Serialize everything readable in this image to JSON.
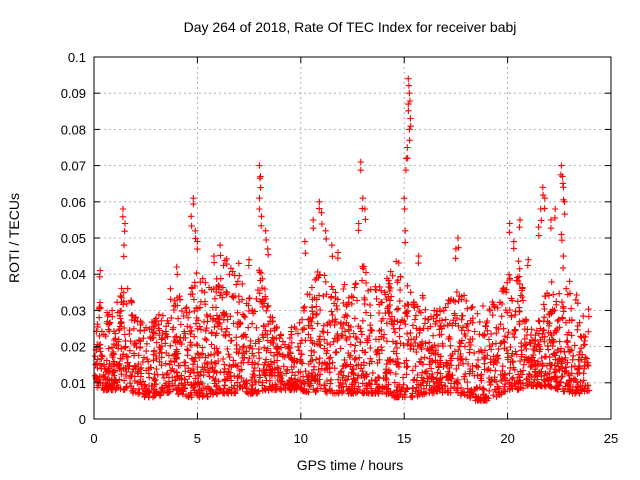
{
  "chart_data": {
    "type": "scatter",
    "title": "Day 264 of 2018, Rate Of TEC Index for receiver babj",
    "xlabel": "GPS time / hours",
    "ylabel": "ROTI / TECUs",
    "xlim": [
      0,
      25
    ],
    "ylim": [
      0,
      0.1
    ],
    "xticks": [
      "0",
      "5",
      "10",
      "15",
      "20",
      "25"
    ],
    "yticks": [
      "0",
      "0.01",
      "0.02",
      "0.03",
      "0.04",
      "0.05",
      "0.06",
      "0.07",
      "0.08",
      "0.09",
      "0.1"
    ],
    "grid": true,
    "marker": "+",
    "color": "#ff0000",
    "envelope": {
      "x": [
        0,
        0.3,
        0.5,
        1,
        1.5,
        2,
        2.5,
        3,
        3.5,
        4,
        4.5,
        5,
        5.5,
        6,
        6.5,
        7,
        7.5,
        8,
        8.5,
        9,
        9.5,
        10,
        10.5,
        11,
        11.5,
        12,
        12.5,
        13,
        13.5,
        14,
        14.5,
        15,
        15.5,
        16,
        16.5,
        17,
        17.5,
        18,
        18.5,
        19,
        19.5,
        20,
        20.5,
        21,
        21.5,
        22,
        22.5,
        23,
        23.5,
        24
      ],
      "low": [
        0.009,
        0.008,
        0.008,
        0.008,
        0.008,
        0.007,
        0.006,
        0.006,
        0.007,
        0.007,
        0.006,
        0.006,
        0.006,
        0.007,
        0.007,
        0.007,
        0.007,
        0.007,
        0.008,
        0.008,
        0.008,
        0.008,
        0.007,
        0.007,
        0.007,
        0.007,
        0.007,
        0.007,
        0.007,
        0.007,
        0.006,
        0.006,
        0.006,
        0.007,
        0.007,
        0.007,
        0.007,
        0.006,
        0.005,
        0.005,
        0.006,
        0.008,
        0.008,
        0.009,
        0.009,
        0.009,
        0.008,
        0.007,
        0.007,
        0.008
      ],
      "high": [
        0.028,
        0.034,
        0.03,
        0.03,
        0.04,
        0.03,
        0.026,
        0.03,
        0.028,
        0.035,
        0.033,
        0.042,
        0.037,
        0.04,
        0.046,
        0.038,
        0.036,
        0.043,
        0.03,
        0.025,
        0.025,
        0.028,
        0.04,
        0.045,
        0.038,
        0.038,
        0.035,
        0.043,
        0.036,
        0.04,
        0.045,
        0.042,
        0.034,
        0.035,
        0.03,
        0.033,
        0.035,
        0.036,
        0.03,
        0.033,
        0.032,
        0.04,
        0.045,
        0.025,
        0.028,
        0.038,
        0.04,
        0.035,
        0.035,
        0.03
      ]
    },
    "spikes": [
      {
        "x": 0.3,
        "y": 0.041
      },
      {
        "x": 1.4,
        "y": 0.058
      },
      {
        "x": 1.5,
        "y": 0.054
      },
      {
        "x": 1.45,
        "y": 0.048
      },
      {
        "x": 3.7,
        "y": 0.036
      },
      {
        "x": 4.0,
        "y": 0.042
      },
      {
        "x": 4.7,
        "y": 0.056
      },
      {
        "x": 4.8,
        "y": 0.061
      },
      {
        "x": 4.9,
        "y": 0.052
      },
      {
        "x": 5.0,
        "y": 0.049
      },
      {
        "x": 5.8,
        "y": 0.045
      },
      {
        "x": 6.1,
        "y": 0.048
      },
      {
        "x": 7.0,
        "y": 0.043
      },
      {
        "x": 7.5,
        "y": 0.044
      },
      {
        "x": 8.0,
        "y": 0.07
      },
      {
        "x": 8.05,
        "y": 0.067
      },
      {
        "x": 8.0,
        "y": 0.061
      },
      {
        "x": 8.1,
        "y": 0.056
      },
      {
        "x": 8.3,
        "y": 0.052
      },
      {
        "x": 8.4,
        "y": 0.047
      },
      {
        "x": 10.2,
        "y": 0.049
      },
      {
        "x": 10.6,
        "y": 0.055
      },
      {
        "x": 10.9,
        "y": 0.06
      },
      {
        "x": 11.0,
        "y": 0.057
      },
      {
        "x": 11.2,
        "y": 0.052
      },
      {
        "x": 11.5,
        "y": 0.048
      },
      {
        "x": 11.8,
        "y": 0.046
      },
      {
        "x": 12.8,
        "y": 0.054
      },
      {
        "x": 12.9,
        "y": 0.071
      },
      {
        "x": 13.0,
        "y": 0.061
      },
      {
        "x": 13.1,
        "y": 0.058
      },
      {
        "x": 15.0,
        "y": 0.061
      },
      {
        "x": 15.05,
        "y": 0.052
      },
      {
        "x": 15.2,
        "y": 0.094
      },
      {
        "x": 15.25,
        "y": 0.09
      },
      {
        "x": 15.2,
        "y": 0.087
      },
      {
        "x": 15.3,
        "y": 0.083
      },
      {
        "x": 15.25,
        "y": 0.08
      },
      {
        "x": 15.15,
        "y": 0.075
      },
      {
        "x": 15.1,
        "y": 0.072
      },
      {
        "x": 15.7,
        "y": 0.045
      },
      {
        "x": 17.5,
        "y": 0.047
      },
      {
        "x": 17.6,
        "y": 0.05
      },
      {
        "x": 20.1,
        "y": 0.054
      },
      {
        "x": 20.3,
        "y": 0.049
      },
      {
        "x": 20.6,
        "y": 0.055
      },
      {
        "x": 21.0,
        "y": 0.044
      },
      {
        "x": 21.6,
        "y": 0.058
      },
      {
        "x": 21.7,
        "y": 0.064
      },
      {
        "x": 21.8,
        "y": 0.061
      },
      {
        "x": 21.5,
        "y": 0.053
      },
      {
        "x": 22.1,
        "y": 0.055
      },
      {
        "x": 22.3,
        "y": 0.058
      },
      {
        "x": 22.6,
        "y": 0.07
      },
      {
        "x": 22.65,
        "y": 0.067
      },
      {
        "x": 22.7,
        "y": 0.064
      },
      {
        "x": 22.75,
        "y": 0.06
      },
      {
        "x": 22.6,
        "y": 0.051
      },
      {
        "x": 22.7,
        "y": 0.045
      },
      {
        "x": 23.0,
        "y": 0.038
      }
    ]
  }
}
